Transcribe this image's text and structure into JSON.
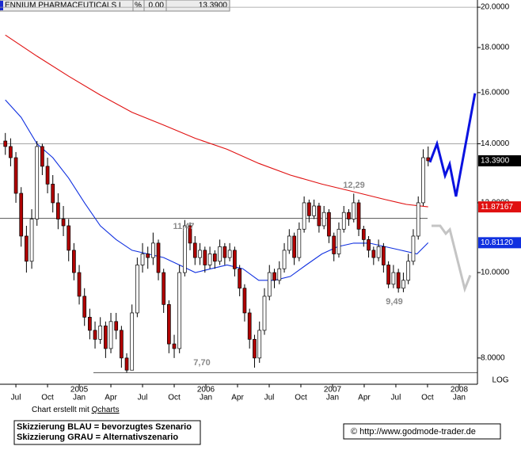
{
  "header": {
    "symbol": "ENNIUM PHARMACEUTICALS I",
    "pct": "%",
    "change": "0.00",
    "last": "13.3900"
  },
  "chart_data": {
    "type": "candlestick",
    "log_scale": true,
    "scale_label": "LOG",
    "ylim": [
      7.47,
      20.38
    ],
    "yticks": [
      {
        "value": 20,
        "label": "20.0000"
      },
      {
        "value": 18,
        "label": "18.0000"
      },
      {
        "value": 16,
        "label": "16.0000"
      },
      {
        "value": 14,
        "label": "14.0000"
      },
      {
        "value": 12,
        "label": "12.0000"
      },
      {
        "value": 10,
        "label": "10.0000"
      },
      {
        "value": 8,
        "label": "8.0000"
      }
    ],
    "xlim": [
      4.87,
      49.73
    ],
    "xticks": [
      {
        "value": 6,
        "label": "Jul"
      },
      {
        "value": 9,
        "label": "Oct"
      },
      {
        "value": 12,
        "label": "Jan"
      },
      {
        "value": 15,
        "label": "Apr"
      },
      {
        "value": 18,
        "label": "Jul"
      },
      {
        "value": 21,
        "label": "Oct"
      },
      {
        "value": 24,
        "label": "Jan"
      },
      {
        "value": 27,
        "label": "Apr"
      },
      {
        "value": 30,
        "label": "Jul"
      },
      {
        "value": 33,
        "label": "Oct"
      },
      {
        "value": 36,
        "label": "Jan"
      },
      {
        "value": 39,
        "label": "Apr"
      },
      {
        "value": 42,
        "label": "Jul"
      },
      {
        "value": 45,
        "label": "Oct"
      },
      {
        "value": 48,
        "label": "Jan"
      }
    ],
    "year_ticks": [
      {
        "value": 12,
        "label": "2005"
      },
      {
        "value": 24,
        "label": "2006"
      },
      {
        "value": 36,
        "label": "2007"
      },
      {
        "value": 48,
        "label": "2008"
      }
    ],
    "x": [
      5,
      5.5,
      6,
      6.5,
      7,
      7.5,
      8,
      8.5,
      9,
      9.5,
      10,
      10.5,
      11,
      11.5,
      12,
      12.5,
      13,
      13.5,
      14,
      14.5,
      15,
      15.5,
      16,
      16.5,
      17,
      17.5,
      18,
      18.5,
      19,
      19.5,
      20,
      20.5,
      21,
      21.5,
      22,
      22.5,
      22.97,
      23.44,
      23.91,
      24.38,
      24.85,
      25.32,
      25.79,
      26.26,
      26.73,
      27.2,
      27.67,
      28.14,
      28.61,
      29.08,
      29.55,
      30.02,
      30.49,
      30.96,
      31.43,
      31.9,
      32.37,
      32.84,
      33.31,
      33.78,
      34.25,
      34.72,
      35.19,
      35.66,
      36.13,
      36.6,
      37.07,
      37.54,
      38.01,
      38.48,
      38.95,
      39.42,
      39.89,
      40.36,
      40.83,
      41.3,
      41.77,
      42.24,
      42.71,
      43.18,
      43.65,
      44.12,
      44.59,
      45.06
    ],
    "open": [
      14.1,
      13.9,
      13.5,
      12.3,
      11.0,
      10.3,
      11.5,
      13.9,
      13.2,
      12.6,
      12.0,
      11.5,
      11.3,
      10.6,
      10.0,
      9.4,
      8.9,
      8.6,
      8.4,
      8.7,
      8.2,
      8.8,
      8.6,
      8.0,
      7.75,
      9.0,
      10.2,
      10.5,
      10.4,
      10.8,
      10.0,
      9.2,
      8.3,
      8.2,
      10.0,
      11.3,
      10.8,
      10.4,
      10.6,
      10.2,
      10.5,
      10.3,
      10.7,
      10.4,
      10.6,
      10.1,
      9.6,
      9.0,
      8.4,
      8.0,
      8.6,
      9.4,
      10.0,
      9.8,
      10.1,
      10.6,
      11.0,
      10.4,
      11.2,
      12.0,
      11.6,
      11.9,
      11.3,
      11.7,
      11.0,
      10.5,
      11.2,
      11.7,
      11.5,
      12.0,
      11.2,
      10.9,
      10.6,
      10.4,
      10.7,
      10.2,
      9.7,
      10.0,
      9.6,
      9.8,
      10.3,
      11.0,
      12.0,
      13.5
    ],
    "high": [
      14.4,
      14.2,
      13.7,
      12.5,
      11.3,
      11.8,
      14.1,
      14.0,
      13.5,
      12.9,
      12.3,
      11.9,
      11.5,
      10.8,
      10.2,
      9.6,
      9.1,
      8.8,
      8.9,
      8.8,
      9.0,
      9.0,
      8.7,
      8.1,
      9.2,
      10.4,
      10.8,
      10.7,
      11.1,
      10.9,
      10.1,
      9.3,
      8.5,
      10.2,
      11.47,
      11.4,
      11.0,
      10.8,
      10.7,
      10.7,
      10.6,
      10.9,
      10.8,
      10.8,
      10.7,
      10.2,
      9.7,
      9.1,
      8.5,
      8.8,
      9.6,
      10.2,
      10.1,
      10.3,
      10.8,
      11.2,
      11.1,
      11.4,
      12.2,
      12.1,
      12.1,
      12.0,
      11.9,
      11.8,
      11.1,
      11.4,
      11.9,
      11.8,
      12.29,
      12.1,
      11.3,
      11.0,
      10.7,
      10.9,
      10.8,
      10.3,
      10.2,
      10.1,
      10.0,
      10.5,
      11.2,
      12.2,
      13.8,
      13.9
    ],
    "low": [
      13.6,
      13.2,
      12.0,
      10.7,
      10.0,
      10.1,
      11.3,
      12.9,
      12.3,
      11.7,
      11.2,
      11.0,
      10.3,
      9.8,
      9.2,
      8.7,
      8.4,
      8.2,
      8.3,
      8.0,
      8.1,
      8.4,
      7.8,
      7.7,
      7.75,
      8.9,
      10.0,
      10.1,
      10.2,
      9.8,
      9.0,
      8.1,
      8.0,
      8.1,
      9.9,
      10.6,
      10.2,
      10.2,
      10.0,
      10.1,
      10.1,
      10.2,
      10.2,
      10.3,
      9.9,
      9.4,
      8.8,
      8.2,
      7.8,
      7.9,
      8.5,
      9.3,
      9.6,
      9.7,
      10.0,
      10.5,
      10.2,
      10.3,
      11.1,
      11.4,
      11.5,
      11.1,
      11.2,
      10.8,
      10.3,
      10.4,
      11.1,
      11.3,
      11.4,
      11.0,
      10.7,
      10.4,
      10.2,
      10.3,
      10.0,
      9.6,
      9.6,
      9.49,
      9.5,
      9.7,
      10.2,
      10.9,
      11.9,
      13.2
    ],
    "close": [
      13.9,
      13.5,
      12.3,
      11.0,
      10.3,
      11.5,
      13.9,
      13.2,
      12.6,
      12.0,
      11.5,
      11.3,
      10.6,
      10.0,
      9.4,
      8.9,
      8.6,
      8.4,
      8.7,
      8.2,
      8.8,
      8.6,
      8.0,
      7.75,
      9.0,
      10.2,
      10.5,
      10.4,
      10.8,
      10.0,
      9.2,
      8.3,
      8.2,
      10.0,
      11.3,
      10.8,
      10.4,
      10.6,
      10.2,
      10.5,
      10.3,
      10.7,
      10.4,
      10.6,
      10.1,
      9.6,
      9.0,
      8.4,
      8.0,
      8.6,
      9.4,
      10.0,
      9.8,
      10.1,
      10.6,
      11.0,
      10.4,
      11.2,
      12.0,
      11.6,
      11.9,
      11.3,
      11.7,
      11.0,
      10.5,
      11.2,
      11.7,
      11.5,
      12.0,
      11.2,
      10.9,
      10.6,
      10.4,
      10.7,
      10.2,
      9.7,
      10.0,
      9.6,
      9.8,
      10.3,
      11.0,
      12.0,
      13.5,
      13.39
    ],
    "last_label": "13.3900",
    "series": [
      {
        "color": "#e01010",
        "x": [
          5,
          8,
          11,
          14,
          17,
          20,
          23,
          26,
          29,
          32,
          35,
          38,
          41,
          43,
          45.06
        ],
        "values": [
          18.6,
          17.6,
          16.7,
          15.9,
          15.2,
          14.7,
          14.2,
          13.8,
          13.3,
          12.9,
          12.6,
          12.35,
          12.1,
          11.95,
          11.87167
        ],
        "end_label": "11.87167"
      },
      {
        "color": "#1030e0",
        "x": [
          5,
          6.5,
          8,
          9.5,
          11,
          12.5,
          14,
          15.5,
          17,
          18.5,
          20,
          21.5,
          23,
          24.5,
          26,
          27.5,
          29,
          30.5,
          32,
          33.5,
          35,
          36.5,
          38,
          39.5,
          41,
          42.5,
          44,
          45.06
        ],
        "values": [
          15.7,
          15.0,
          14.0,
          13.5,
          12.8,
          12.0,
          11.3,
          10.9,
          10.6,
          10.5,
          10.4,
          10.2,
          10.0,
          10.1,
          10.2,
          10.1,
          9.8,
          9.8,
          9.9,
          10.2,
          10.5,
          10.7,
          10.8,
          10.8,
          10.7,
          10.6,
          10.5,
          10.8112
        ],
        "end_label": "10.81120"
      }
    ],
    "scenarios": [
      {
        "color": "#0a12e0",
        "x": [
          45.23,
          45.9,
          46.66,
          47.1,
          47.7,
          49.5
        ],
        "values": [
          13.34,
          14.0,
          12.88,
          13.27,
          12.2,
          15.97
        ]
      },
      {
        "color": "#c4c4c4",
        "x": [
          45.38,
          46.2,
          46.73,
          47.11,
          48.53,
          49.05
        ],
        "values": [
          11.3,
          11.3,
          11.07,
          11.19,
          9.58,
          9.93
        ]
      }
    ],
    "levels": [
      11.52,
      7.7
    ],
    "annotations": [
      "11,47",
      "12,29",
      "7,70",
      "9,49"
    ]
  },
  "footer": {
    "credit": "Chart erstellt mit",
    "credit_link": "Qcharts",
    "legend": [
      "Skizzierung BLAU = bevorzugtes Szenario",
      "Skizzierung GRAU = Alternativszenario"
    ],
    "copyright": "© http://www.godmode-trader.de"
  }
}
